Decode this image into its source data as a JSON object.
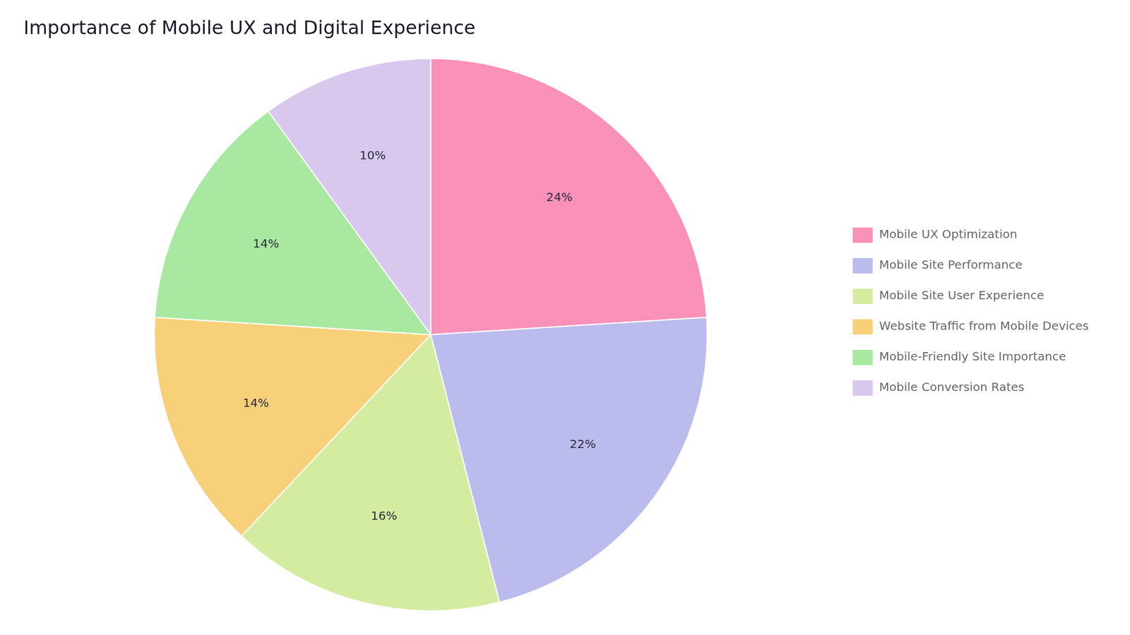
{
  "chart_data": {
    "type": "pie",
    "title": "Importance of Mobile UX and Digital Experience",
    "categories": [
      "Mobile UX Optimization",
      "Mobile Site Performance",
      "Mobile Site User Experience",
      "Website Traffic from Mobile Devices",
      "Mobile-Friendly Site Importance",
      "Mobile Conversion Rates"
    ],
    "values": [
      24,
      22,
      16,
      14,
      14,
      10
    ],
    "value_labels": [
      "24%",
      "22%",
      "16%",
      "14%",
      "14%",
      "10%"
    ],
    "colors": [
      "#F991B8",
      "#BBBBEE",
      "#D4ECA0",
      "#F8D07A",
      "#A8E8A0",
      "#D8C8EE"
    ],
    "data_labels": true,
    "legend": "right"
  }
}
